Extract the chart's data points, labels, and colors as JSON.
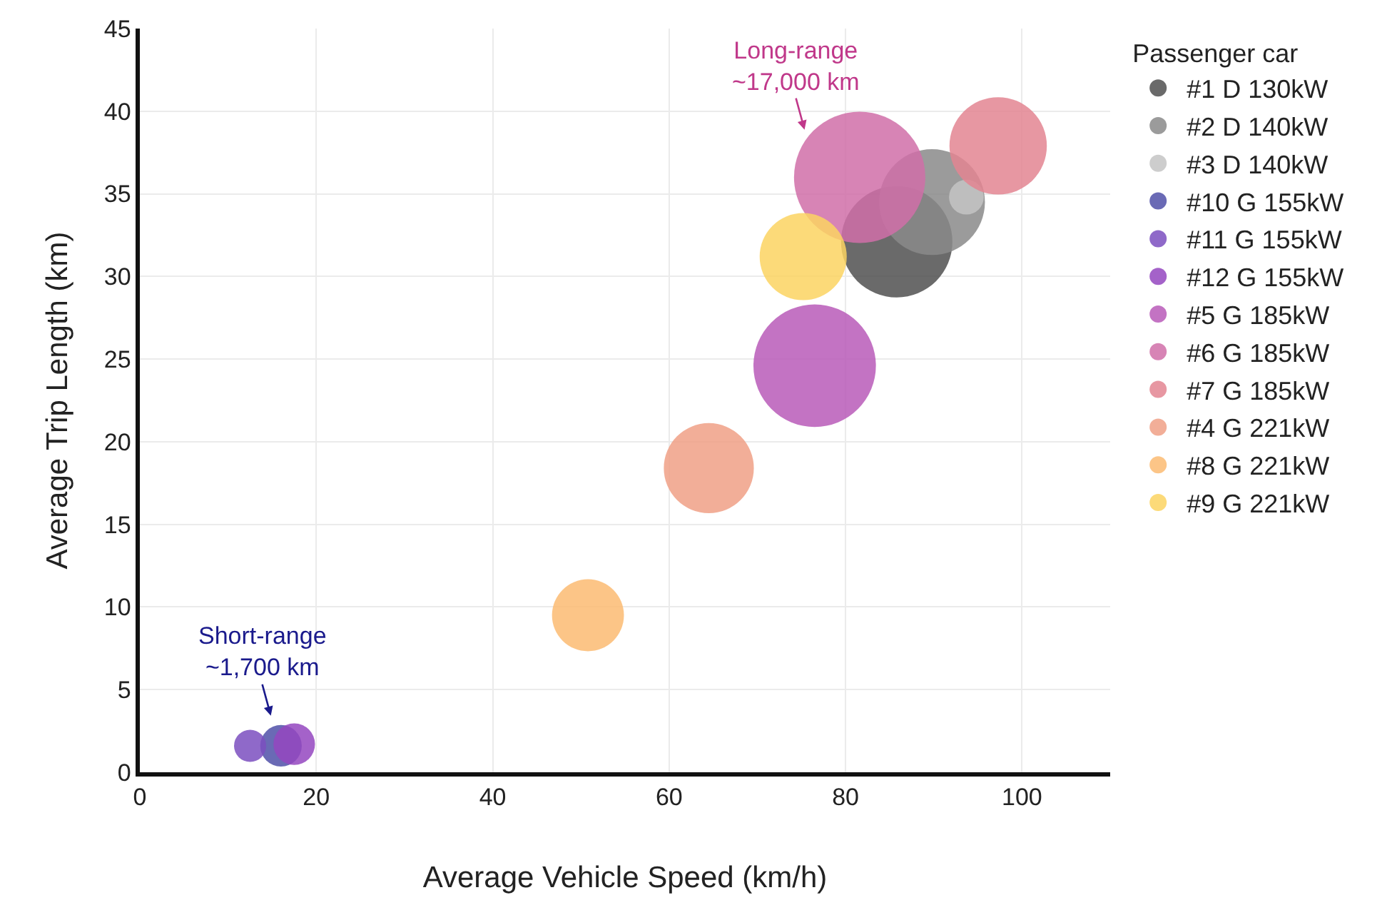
{
  "chart_data": {
    "type": "bubble",
    "xlabel": "Average Vehicle Speed (km/h)",
    "ylabel": "Average Trip Length (km)",
    "legend_title": "Passenger car",
    "xlim": [
      0,
      110
    ],
    "xticks": [
      0,
      20,
      40,
      60,
      80,
      100
    ],
    "ylim": [
      0,
      45
    ],
    "yticks": [
      0,
      5,
      10,
      15,
      20,
      25,
      30,
      35,
      40,
      45
    ],
    "grid": true,
    "legend": "right",
    "series": [
      {
        "name": "#1 D 130kW",
        "color": "#505050",
        "x": [
          85.8
        ],
        "values": [
          32.1
        ],
        "sizes": [
          0.72
        ]
      },
      {
        "name": "#2 D 140kW",
        "color": "#8a8a8a",
        "x": [
          89.8
        ],
        "values": [
          34.5
        ],
        "sizes": [
          0.65
        ]
      },
      {
        "name": "#3 D 140kW",
        "color": "#c4c4c4",
        "x": [
          93.7
        ],
        "values": [
          34.8
        ],
        "sizes": [
          0.07
        ]
      },
      {
        "name": "#10 G 155kW",
        "color": "#5050a8",
        "x": [
          16.0
        ],
        "values": [
          1.6
        ],
        "sizes": [
          0.1
        ]
      },
      {
        "name": "#11 G 155kW",
        "color": "#7b4fbf",
        "x": [
          12.5
        ],
        "values": [
          1.6
        ],
        "sizes": [
          0.06
        ]
      },
      {
        "name": "#12 G 155kW",
        "color": "#9446c0",
        "x": [
          17.5
        ],
        "values": [
          1.7
        ],
        "sizes": [
          0.1
        ]
      },
      {
        "name": "#5 G 185kW",
        "color": "#b85bb9",
        "x": [
          76.5
        ],
        "values": [
          24.6
        ],
        "sizes": [
          0.87
        ]
      },
      {
        "name": "#6 G 185kW",
        "color": "#d06fa8",
        "x": [
          81.6
        ],
        "values": [
          36.0
        ],
        "sizes": [
          1
        ]
      },
      {
        "name": "#7 G 185kW",
        "color": "#e38592",
        "x": [
          97.3
        ],
        "values": [
          37.9
        ],
        "sizes": [
          0.55
        ]
      },
      {
        "name": "#4 G 221kW",
        "color": "#f0a086",
        "x": [
          64.5
        ],
        "values": [
          18.4
        ],
        "sizes": [
          0.47
        ]
      },
      {
        "name": "#8 G 221kW",
        "color": "#fcbb72",
        "x": [
          50.8
        ],
        "values": [
          9.5
        ],
        "sizes": [
          0.3
        ]
      },
      {
        "name": "#9 G 221kW",
        "color": "#fcd462",
        "x": [
          75.2
        ],
        "values": [
          31.2
        ],
        "sizes": [
          0.44
        ]
      }
    ],
    "annotations": [
      "Long-range\n~17,000 km",
      "Short-range\n~1,700 km"
    ]
  }
}
